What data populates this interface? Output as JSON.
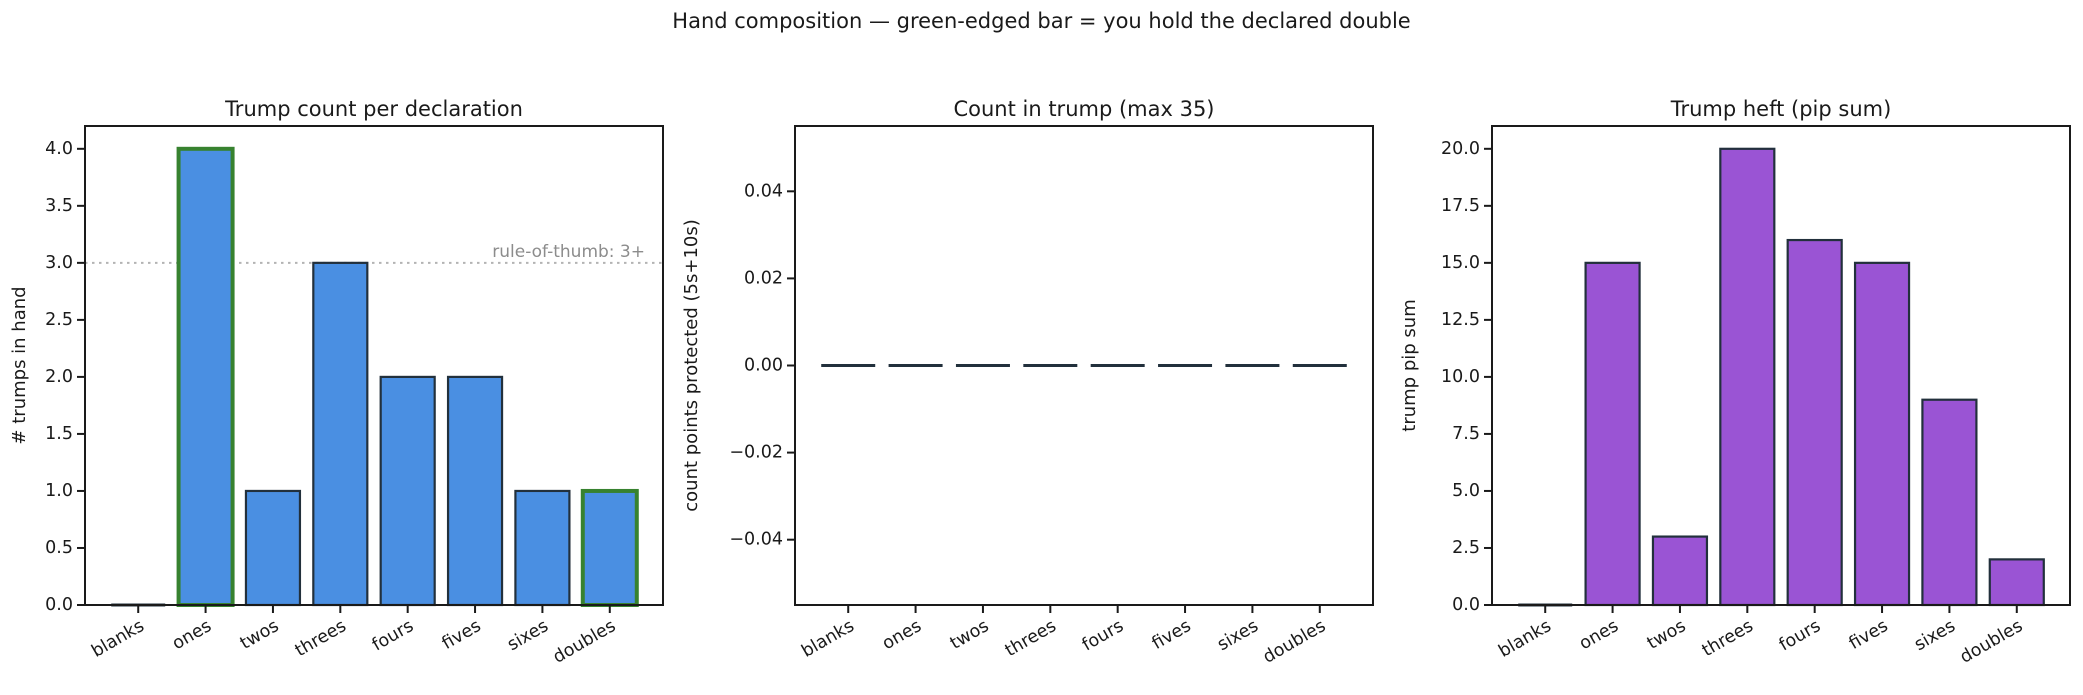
{
  "figure": {
    "suptitle": "Hand composition — green-edged bar = you hold the declared double",
    "background_color": "#ffffff",
    "text_color": "#1a1a1a"
  },
  "chart_data": [
    {
      "type": "bar",
      "title": "Trump count per declaration",
      "xlabel": "",
      "ylabel": "# trumps in hand",
      "categories": [
        "blanks",
        "ones",
        "twos",
        "threes",
        "fours",
        "fives",
        "sixes",
        "doubles"
      ],
      "values": [
        0,
        4,
        1,
        3,
        2,
        2,
        1,
        1
      ],
      "highlighted_categories": [
        "ones",
        "doubles"
      ],
      "highlight_meaning": "green-edged bar = you hold the declared double",
      "ylim": [
        0,
        4.2
      ],
      "yticks": [
        0,
        0.5,
        1,
        1.5,
        2,
        2.5,
        3,
        3.5,
        4
      ],
      "ytick_labels": [
        "0.0",
        "0.5",
        "1.0",
        "1.5",
        "2.0",
        "2.5",
        "3.0",
        "3.5",
        "4.0"
      ],
      "bar_color": "#4a8fe2",
      "bar_edge_color": "#22303c",
      "highlight_edge_color": "#37822f",
      "grid": false,
      "legend": null,
      "annotation": {
        "text": "rule-of-thumb: 3+",
        "y": 3,
        "line_style": "dotted",
        "line_color": "#b3b3b3",
        "text_color": "#8c8c8c"
      }
    },
    {
      "type": "bar",
      "title": "Count in trump (max 35)",
      "xlabel": "",
      "ylabel": "count points protected (5s+10s)",
      "categories": [
        "blanks",
        "ones",
        "twos",
        "threes",
        "fours",
        "fives",
        "sixes",
        "doubles"
      ],
      "values": [
        0,
        0,
        0,
        0,
        0,
        0,
        0,
        0
      ],
      "highlighted_categories": [],
      "ylim": [
        -0.055,
        0.055
      ],
      "yticks": [
        -0.04,
        -0.02,
        0,
        0.02,
        0.04
      ],
      "ytick_labels": [
        "−0.04",
        "−0.02",
        "0.00",
        "0.02",
        "0.04"
      ],
      "bar_color": "#4a8fe2",
      "bar_edge_color": "#22303c",
      "highlight_edge_color": "#37822f",
      "grid": false,
      "legend": null,
      "annotation": null
    },
    {
      "type": "bar",
      "title": "Trump heft (pip sum)",
      "xlabel": "",
      "ylabel": "trump pip sum",
      "categories": [
        "blanks",
        "ones",
        "twos",
        "threes",
        "fours",
        "fives",
        "sixes",
        "doubles"
      ],
      "values": [
        0,
        15,
        3,
        20,
        16,
        15,
        9,
        2
      ],
      "highlighted_categories": [],
      "ylim": [
        0,
        21
      ],
      "yticks": [
        0,
        2.5,
        5,
        7.5,
        10,
        12.5,
        15,
        17.5,
        20
      ],
      "ytick_labels": [
        "0.0",
        "2.5",
        "5.0",
        "7.5",
        "10.0",
        "12.5",
        "15.0",
        "17.5",
        "20.0"
      ],
      "bar_color": "#9a54d4",
      "bar_edge_color": "#22303c",
      "highlight_edge_color": "#37822f",
      "grid": false,
      "legend": null,
      "annotation": null
    }
  ]
}
